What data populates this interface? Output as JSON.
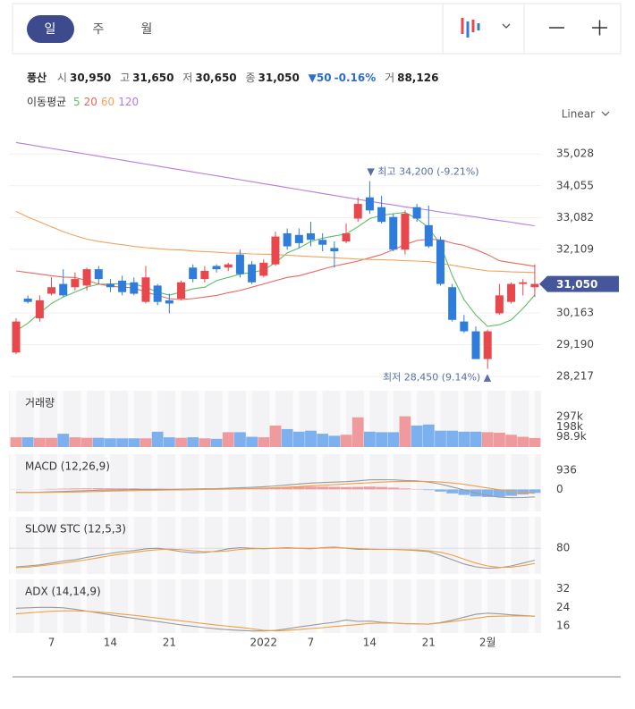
{
  "toolbar": {
    "periods": [
      "일",
      "주",
      "월"
    ],
    "scale": "Linear"
  },
  "quote": {
    "name": "풍산",
    "open_label": "시",
    "open": "30,950",
    "high_label": "고",
    "high": "31,650",
    "low_label": "저",
    "low": "30,650",
    "close_label": "종",
    "close": "31,050",
    "change": "▼50",
    "change_pct": "-0.16%",
    "volume_label": "거",
    "volume": "88,126"
  },
  "chart_data": [
    {
      "type": "candlestick",
      "legend_title": "이동평균",
      "categories": [
        null,
        null,
        null,
        "7",
        null,
        null,
        null,
        null,
        "14",
        null,
        null,
        null,
        null,
        "21",
        null,
        null,
        null,
        null,
        null,
        null,
        null,
        "2022",
        null,
        null,
        null,
        "7",
        null,
        null,
        null,
        null,
        "14",
        null,
        null,
        null,
        null,
        "21",
        null,
        null,
        null,
        null,
        "2월",
        null,
        null,
        null,
        null
      ],
      "open": [
        28950,
        30600,
        30000,
        30750,
        31050,
        30950,
        31000,
        31500,
        31050,
        31150,
        31100,
        30500,
        31000,
        30550,
        30600,
        31550,
        31200,
        31600,
        31550,
        31950,
        31650,
        31300,
        31650,
        32600,
        32550,
        32600,
        32400,
        32150,
        32350,
        33050,
        33700,
        33400,
        33100,
        32100,
        33400,
        32850,
        32400,
        30950,
        29900,
        29600,
        28750,
        30150,
        30500,
        31050,
        30950
      ],
      "high": [
        30000,
        30700,
        30700,
        31250,
        31500,
        31400,
        31550,
        31600,
        31200,
        31300,
        31250,
        31600,
        31050,
        30750,
        31150,
        31650,
        31600,
        31650,
        31700,
        32100,
        31750,
        31800,
        32650,
        32750,
        32750,
        32950,
        32600,
        32350,
        32900,
        33700,
        34200,
        33750,
        33200,
        33300,
        33500,
        33450,
        32500,
        31050,
        30100,
        29750,
        29650,
        31050,
        31100,
        31200,
        31650
      ],
      "low": [
        28900,
        30450,
        29900,
        30700,
        30650,
        30850,
        30850,
        31050,
        30800,
        30700,
        30700,
        30450,
        30400,
        30150,
        30550,
        31100,
        31100,
        31400,
        31450,
        31250,
        31050,
        31250,
        31600,
        32100,
        32150,
        32200,
        32050,
        31550,
        32300,
        32950,
        33200,
        32900,
        32050,
        31950,
        32950,
        32150,
        31000,
        29900,
        29550,
        28750,
        28450,
        30100,
        30450,
        30700,
        30650
      ],
      "close": [
        29900,
        30500,
        30550,
        30950,
        30700,
        31200,
        31500,
        31200,
        30950,
        30800,
        30750,
        31250,
        30500,
        30450,
        31100,
        31200,
        31450,
        31500,
        31650,
        31350,
        31100,
        31700,
        32500,
        32200,
        32300,
        32400,
        32250,
        32050,
        32600,
        33500,
        33300,
        32950,
        32100,
        33200,
        33050,
        32200,
        31050,
        29950,
        29600,
        28750,
        29600,
        30700,
        31050,
        31100,
        31050
      ],
      "up_color": "#e8474c",
      "down_color": "#2e7cdc",
      "series": [
        {
          "name": "5",
          "color": "#5cbf62",
          "values": [
            29610,
            29850,
            30160,
            30450,
            30650,
            30800,
            30950,
            31040,
            31050,
            31050,
            31040,
            30950,
            30800,
            30710,
            30800,
            30900,
            30950,
            31150,
            31250,
            31350,
            31400,
            31480,
            31700,
            32000,
            32150,
            32350,
            32450,
            32520,
            32580,
            32800,
            33050,
            33150,
            33200,
            33240,
            33050,
            32770,
            32250,
            31300,
            30570,
            30100,
            29750,
            29800,
            29950,
            30300,
            30710
          ]
        },
        {
          "name": "20",
          "color": "#e8685e",
          "values": [
            31450,
            31400,
            31350,
            31300,
            31260,
            31250,
            31150,
            31050,
            30980,
            30950,
            30930,
            30800,
            30700,
            30600,
            30570,
            30600,
            30650,
            30700,
            30780,
            30850,
            30950,
            31050,
            31150,
            31250,
            31300,
            31400,
            31500,
            31600,
            31670,
            31750,
            31850,
            31950,
            32100,
            32250,
            32380,
            32420,
            32400,
            32300,
            32230,
            32100,
            31950,
            31760,
            31700,
            31650,
            31590
          ]
        },
        {
          "name": "60",
          "color": "#f0a35e",
          "values": [
            33270,
            33100,
            32950,
            32800,
            32650,
            32530,
            32420,
            32350,
            32300,
            32250,
            32200,
            32160,
            32130,
            32100,
            32090,
            32060,
            32040,
            32020,
            32000,
            31990,
            31970,
            31960,
            31950,
            31930,
            31910,
            31890,
            31870,
            31850,
            31830,
            31810,
            31800,
            31790,
            31780,
            31760,
            31750,
            31730,
            31680,
            31620,
            31560,
            31500,
            31450,
            31440,
            31420,
            31410,
            31400
          ]
        },
        {
          "name": "120",
          "color": "#b47de0",
          "values": [
            35380,
            35320,
            35260,
            35200,
            35140,
            35080,
            35020,
            34960,
            34900,
            34840,
            34780,
            34720,
            34660,
            34600,
            34540,
            34480,
            34420,
            34360,
            34300,
            34240,
            34180,
            34120,
            34060,
            34000,
            33940,
            33880,
            33820,
            33760,
            33700,
            33640,
            33580,
            33520,
            33470,
            33410,
            33360,
            33310,
            33250,
            33200,
            33150,
            33100,
            33040,
            32990,
            32940,
            32880,
            32830
          ]
        }
      ],
      "high_note": "▼ 최고 34,200 (-9.21%)",
      "low_note": "최저 28,450 (9.14%) ▲",
      "ylim": [
        28000,
        35500
      ],
      "yticks": [
        {
          "value": 35028,
          "label": "35,028"
        },
        {
          "value": 34055,
          "label": "34,055"
        },
        {
          "value": 33082,
          "label": "33,082"
        },
        {
          "value": 32109,
          "label": "32,109"
        },
        {
          "value": 30163,
          "label": "30,163"
        },
        {
          "value": 29190,
          "label": "29,190"
        },
        {
          "value": 28217,
          "label": "28,217"
        }
      ],
      "grid": true
    },
    {
      "type": "volume",
      "title": "거래량",
      "up_color": "#ef9a9d",
      "down_color": "#7db0ef",
      "values": [
        95000,
        95000,
        90000,
        90000,
        130000,
        95000,
        90000,
        90000,
        85000,
        85000,
        85000,
        85000,
        150000,
        95000,
        90000,
        95000,
        85000,
        80000,
        145000,
        145000,
        100000,
        95000,
        210000,
        175000,
        150000,
        160000,
        130000,
        110000,
        120000,
        290000,
        150000,
        145000,
        145000,
        300000,
        210000,
        220000,
        160000,
        160000,
        150000,
        150000,
        145000,
        140000,
        120000,
        100000,
        88126
      ],
      "ylim": [
        0,
        550000
      ],
      "yticks": [
        {
          "value": 297000,
          "label": "297k"
        },
        {
          "value": 198000,
          "label": "198k"
        },
        {
          "value": 98900,
          "label": "98.9k"
        }
      ]
    },
    {
      "type": "macd",
      "title": "MACD (12,26,9)",
      "histogram": {
        "up_color": "#f19a9c",
        "down_color": "#82b2ee",
        "values": [
          10,
          0,
          8,
          25,
          38,
          47,
          53,
          59,
          55,
          52,
          50,
          40,
          40,
          32,
          34,
          35,
          36,
          37,
          46,
          53,
          58,
          70,
          88,
          110,
          128,
          135,
          132,
          122,
          114,
          123,
          139,
          119,
          87,
          45,
          20,
          -32,
          -106,
          -197,
          -270,
          -344,
          -371,
          -361,
          -313,
          -245,
          -172
        ]
      },
      "series": [
        {
          "color": "#9a9a9a",
          "values": [
            -140,
            -150,
            -140,
            -120,
            -100,
            -80,
            -60,
            -40,
            -30,
            -20,
            -10,
            -10,
            0,
            0,
            10,
            20,
            30,
            40,
            60,
            80,
            100,
            130,
            170,
            220,
            270,
            310,
            340,
            360,
            380,
            420,
            470,
            480,
            470,
            440,
            420,
            360,
            260,
            120,
            -20,
            -180,
            -300,
            -380,
            -410,
            -400,
            -370
          ]
        },
        {
          "color": "#eea046",
          "values": [
            -150,
            -150,
            -148,
            -145,
            -138,
            -127,
            -113,
            -99,
            -85,
            -72,
            -60,
            -50,
            -40,
            -32,
            -24,
            -15,
            -6,
            3,
            14,
            27,
            42,
            60,
            82,
            110,
            142,
            175,
            208,
            238,
            266,
            297,
            331,
            361,
            383,
            395,
            400,
            392,
            366,
            317,
            250,
            164,
            71,
            -19,
            -97,
            -155,
            -198
          ]
        }
      ],
      "ylim": [
        -1080,
        1730
      ],
      "yticks": [
        936,
        0
      ]
    },
    {
      "type": "line",
      "title": "SLOW STC (12,5,3)",
      "series": [
        {
          "color": "#9a9a9a",
          "values": [
            15,
            18,
            22,
            28,
            35,
            40,
            48,
            55,
            62,
            68,
            72,
            78,
            80,
            75,
            68,
            64,
            65,
            70,
            78,
            82,
            80,
            78,
            80,
            82,
            80,
            78,
            82,
            84,
            80,
            76,
            76,
            76,
            76,
            74,
            72,
            68,
            55,
            40,
            25,
            15,
            10,
            12,
            18,
            28,
            38
          ]
        },
        {
          "color": "#eea046",
          "values": [
            12,
            14,
            18,
            23,
            28,
            34,
            40,
            47,
            54,
            60,
            66,
            71,
            75,
            77,
            75,
            71,
            68,
            68,
            71,
            76,
            78,
            79,
            80,
            80,
            80,
            80,
            81,
            82,
            81,
            79,
            77,
            76,
            76,
            75,
            74,
            71,
            66,
            56,
            42,
            28,
            18,
            13,
            14,
            19,
            27
          ]
        }
      ],
      "ylim": [
        -10,
        190
      ],
      "yticks": [
        80
      ],
      "grid": true
    },
    {
      "type": "line",
      "title": "ADX (14,14,9)",
      "series": [
        {
          "color": "#9a9a9a",
          "values": [
            23.6,
            23.8,
            24,
            24,
            23.8,
            23.2,
            22.4,
            21.6,
            20.8,
            20,
            19.3,
            18.6,
            17.9,
            17.2,
            16.5,
            15.9,
            15.3,
            14.8,
            14.4,
            14.1,
            13.9,
            13.9,
            14.1,
            14.8,
            15.6,
            16.3,
            17,
            17.6,
            18.6,
            18,
            18.1,
            17.6,
            17.3,
            17,
            16.9,
            16.8,
            17.5,
            18.5,
            19.8,
            21,
            21.5,
            21.2,
            20.8,
            20.5,
            20.2
          ]
        },
        {
          "color": "#eea046",
          "values": [
            21.2,
            21.6,
            22,
            22.3,
            22.5,
            22.5,
            22.3,
            22,
            21.6,
            21.1,
            20.6,
            20,
            19.4,
            18.8,
            18.2,
            17.6,
            17,
            16.4,
            15.9,
            15.4,
            14.8,
            14.2,
            13.9,
            14.1,
            14.5,
            14.9,
            15.3,
            15.8,
            16.2,
            16.6,
            17.1,
            17.3,
            17.2,
            17,
            16.9,
            16.8,
            17.3,
            17.9,
            18.6,
            19.3,
            20,
            20.2,
            20.3,
            20.3,
            20.2
          ]
        }
      ],
      "ylim": [
        13,
        36
      ],
      "yticks": [
        32,
        24,
        16
      ]
    }
  ]
}
